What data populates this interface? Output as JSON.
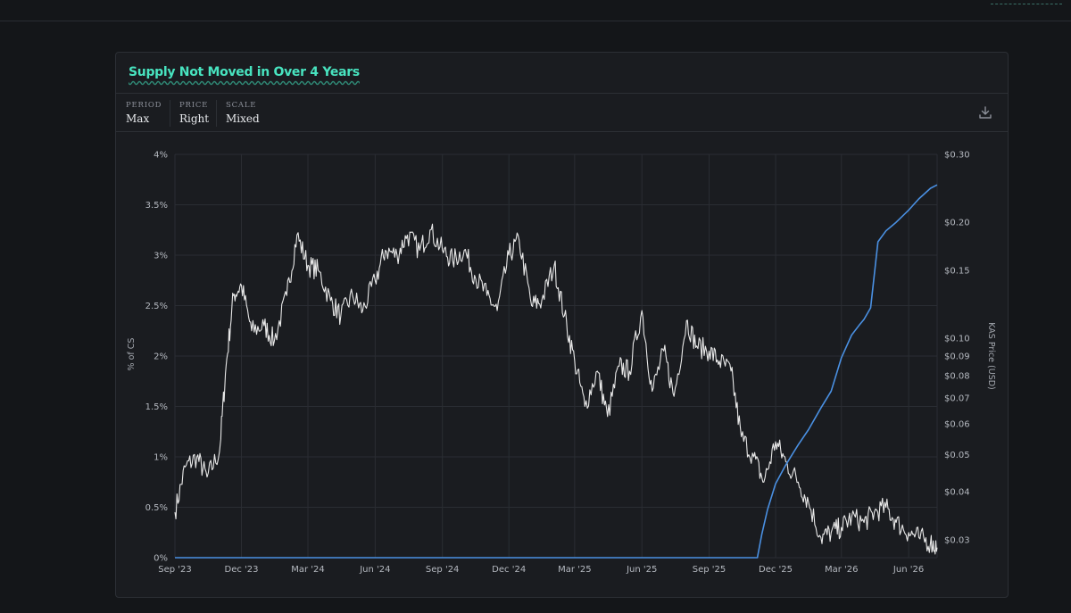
{
  "header": {
    "title": "Supply Not Moved in Over 4 Years"
  },
  "controls": [
    {
      "label": "PERIOD",
      "value": "Max"
    },
    {
      "label": "PRICE",
      "value": "Right"
    },
    {
      "label": "SCALE",
      "value": "Mixed"
    }
  ],
  "icons": {
    "download": "download-icon"
  },
  "colors": {
    "accent": "#48e3bf",
    "supply_line": "#e8e8e8",
    "price_line": "#4a90e2",
    "background": "#141619",
    "card": "#1a1c20"
  },
  "chart_data": {
    "type": "line",
    "title": "Supply Not Moved in Over 4 Years",
    "xlabel": "",
    "ylabel": "% of CS",
    "y2label": "KAS Price (USD)",
    "x_ticks": [
      "Sep '23",
      "Dec '23",
      "Mar '24",
      "Jun '24",
      "Sep '24",
      "Dec '24",
      "Mar '25",
      "Jun '25",
      "Sep '25",
      "Dec '25",
      "Mar '26",
      "Jun '26"
    ],
    "y_ticks": [
      "0%",
      "0.5%",
      "1%",
      "1.5%",
      "2%",
      "2.5%",
      "3%",
      "3.5%",
      "4%"
    ],
    "y2_ticks": [
      "$0.03",
      "$0.04",
      "$0.05",
      "$0.06",
      "$0.07",
      "$0.08",
      "$0.09",
      "$0.10",
      "$0.15",
      "$0.20",
      "$0.30"
    ],
    "ylim": [
      0,
      4
    ],
    "y2lim": [
      0.027,
      0.3
    ],
    "y2_scale": "log",
    "grid": true,
    "series": [
      {
        "name": "",
        "axis": "left",
        "x": [
          "2023-09-01",
          "2023-09-15",
          "2023-10-01",
          "2023-10-15",
          "2023-11-01",
          "2023-11-10",
          "2023-11-20",
          "2023-12-01",
          "2023-12-15",
          "2024-01-01",
          "2024-01-15",
          "2024-02-01",
          "2024-02-15",
          "2024-03-01",
          "2024-03-15",
          "2024-04-01",
          "2024-04-15",
          "2024-05-01",
          "2024-05-15",
          "2024-06-01",
          "2024-06-15",
          "2024-07-01",
          "2024-07-15",
          "2024-08-01",
          "2024-08-15",
          "2024-09-01",
          "2024-09-15",
          "2024-10-01",
          "2024-10-15",
          "2024-11-01",
          "2024-11-15",
          "2024-12-01",
          "2024-12-15",
          "2025-01-01",
          "2025-01-15",
          "2025-02-01",
          "2025-02-15",
          "2025-03-01",
          "2025-03-15",
          "2025-04-01",
          "2025-04-15",
          "2025-05-01",
          "2025-05-15",
          "2025-06-01",
          "2025-06-15",
          "2025-07-01",
          "2025-07-15",
          "2025-08-01",
          "2025-08-15",
          "2025-09-01",
          "2025-09-15",
          "2025-10-01",
          "2025-10-15",
          "2025-11-01",
          "2025-11-15",
          "2025-12-01",
          "2025-12-15",
          "2026-01-01",
          "2026-01-15",
          "2026-02-01",
          "2026-02-15",
          "2026-03-01",
          "2026-03-15",
          "2026-04-01",
          "2026-04-15",
          "2026-05-01",
          "2026-05-15",
          "2026-06-01",
          "2026-06-15",
          "2026-07-01",
          "2026-07-10"
        ],
        "y": [
          0.45,
          0.9,
          1.0,
          0.8,
          1.05,
          1.9,
          2.6,
          2.7,
          2.25,
          2.3,
          2.15,
          2.6,
          3.2,
          2.9,
          2.85,
          2.55,
          2.4,
          2.6,
          2.45,
          2.75,
          3.05,
          3.0,
          3.2,
          3.05,
          3.25,
          3.05,
          2.95,
          3.05,
          2.8,
          2.6,
          2.45,
          3.0,
          3.15,
          2.5,
          2.55,
          2.9,
          2.4,
          1.95,
          1.5,
          1.85,
          1.4,
          1.9,
          1.85,
          2.45,
          1.65,
          2.05,
          1.6,
          2.35,
          2.1,
          2.05,
          1.95,
          1.85,
          1.2,
          1.0,
          0.75,
          1.15,
          0.95,
          0.75,
          0.55,
          0.2,
          0.25,
          0.3,
          0.4,
          0.35,
          0.45,
          0.5,
          0.35,
          0.25,
          0.2,
          0.15,
          0.1
        ]
      },
      {
        "name": "",
        "axis": "right",
        "x": [
          "2023-09-01",
          "2025-11-06",
          "2025-11-12",
          "2025-11-20",
          "2025-12-01",
          "2025-12-15",
          "2026-01-01",
          "2026-01-15",
          "2026-02-01",
          "2026-02-15",
          "2026-03-01",
          "2026-03-15",
          "2026-03-25",
          "2026-04-01",
          "2026-04-10",
          "2026-04-20",
          "2026-05-01",
          "2026-05-15",
          "2026-06-01",
          "2026-06-15",
          "2026-07-01",
          "2026-07-10"
        ],
        "y": [
          0.027,
          0.027,
          0.031,
          0.036,
          0.042,
          0.047,
          0.053,
          0.058,
          0.066,
          0.073,
          0.089,
          0.102,
          0.108,
          0.112,
          0.12,
          0.178,
          0.19,
          0.2,
          0.215,
          0.23,
          0.245,
          0.25
        ]
      }
    ]
  }
}
